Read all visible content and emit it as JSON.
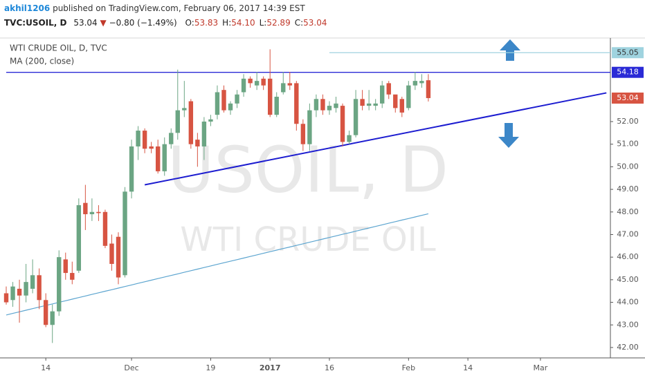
{
  "header": {
    "author": "akhil1206",
    "published": "published on TradingView.com, February 06, 2017 14:39 EST",
    "symbol": "TVC:USOIL, D",
    "last": "53.04",
    "change": "−0.80 (−1.49%)",
    "ohlc": [
      {
        "label": "O:",
        "value": "53.83"
      },
      {
        "label": "H:",
        "value": "54.10"
      },
      {
        "label": "L:",
        "value": "52.89"
      },
      {
        "label": "C:",
        "value": "53.04"
      }
    ]
  },
  "chart_data": {
    "type": "candlestick",
    "legend": [
      "WTI CRUDE OIL, D, TVC",
      "MA (200, close)"
    ],
    "watermark": [
      "USOIL, D",
      "WTI CRUDE OIL"
    ],
    "categories": [
      null,
      null,
      null,
      null,
      null,
      null,
      "14",
      null,
      null,
      null,
      null,
      null,
      null,
      null,
      null,
      null,
      null,
      null,
      null,
      "Dec",
      null,
      null,
      null,
      null,
      null,
      null,
      null,
      null,
      null,
      null,
      null,
      "19",
      null,
      null,
      null,
      null,
      null,
      null,
      null,
      null,
      "2017",
      null,
      null,
      null,
      null,
      null,
      null,
      null,
      null,
      "16",
      null,
      null,
      null,
      null,
      null,
      null,
      null,
      null,
      null,
      null,
      null,
      "Feb",
      null,
      null,
      null,
      null,
      null,
      null,
      null,
      null,
      "14",
      null,
      null,
      null,
      null,
      null,
      null,
      null,
      null,
      null,
      null,
      "Mar",
      null,
      null,
      null,
      null,
      null,
      null,
      null,
      null,
      null,
      null
    ],
    "open": [
      44.4,
      44.1,
      44.6,
      44.3,
      44.6,
      45.2,
      44.1,
      43.0,
      43.6,
      45.9,
      45.3,
      45.4,
      48.4,
      47.9,
      48.0,
      48.0,
      46.6,
      46.9,
      45.2,
      48.9,
      50.9,
      51.6,
      50.9,
      50.9,
      49.8,
      51.0,
      51.5,
      52.5,
      52.9,
      51.2,
      50.9,
      52.0,
      52.3,
      53.4,
      52.5,
      52.8,
      53.3,
      53.9,
      53.6,
      53.9,
      53.9,
      52.3,
      53.3,
      53.7,
      53.7,
      51.9,
      51.0,
      52.5,
      53.0,
      52.5,
      52.6,
      52.7,
      51.1,
      51.4,
      53.0,
      52.7,
      52.7,
      52.8,
      53.7,
      53.2,
      53.0,
      52.6,
      53.6,
      53.7,
      53.83,
      null,
      null,
      null,
      null,
      null,
      null,
      null,
      null,
      null,
      null,
      null,
      null,
      null,
      null,
      null,
      null,
      null,
      null,
      null,
      null,
      null,
      null,
      null,
      null,
      null,
      null,
      null
    ],
    "high": [
      44.7,
      44.9,
      45.0,
      45.7,
      45.9,
      45.5,
      44.4,
      43.9,
      46.3,
      46.2,
      45.8,
      48.6,
      49.2,
      48.6,
      48.3,
      48.1,
      47.0,
      47.1,
      49.1,
      51.2,
      51.8,
      51.7,
      51.1,
      51.2,
      51.3,
      51.7,
      54.3,
      53.8,
      53.0,
      51.5,
      52.2,
      52.3,
      53.6,
      53.6,
      52.9,
      53.4,
      54.1,
      54.0,
      54.2,
      54.0,
      55.2,
      53.3,
      54.2,
      54.2,
      53.8,
      52.1,
      52.8,
      53.2,
      53.2,
      52.9,
      53.1,
      52.8,
      51.6,
      53.4,
      53.4,
      53.4,
      53.0,
      53.8,
      53.8,
      53.1,
      53.1,
      53.8,
      54.2,
      54.1,
      54.1,
      null,
      null,
      null,
      null,
      null,
      null,
      null,
      null,
      null,
      null,
      null,
      null,
      null,
      null,
      null,
      null,
      null,
      null,
      null,
      null,
      null,
      null,
      null,
      null,
      null,
      null,
      null
    ],
    "low": [
      43.9,
      43.8,
      43.1,
      44.0,
      44.4,
      43.7,
      42.9,
      42.2,
      43.4,
      45.0,
      44.8,
      45.3,
      47.2,
      47.6,
      47.6,
      46.4,
      45.4,
      44.8,
      45.1,
      48.6,
      50.3,
      50.6,
      50.6,
      49.7,
      49.6,
      50.8,
      51.2,
      52.2,
      50.8,
      50.0,
      50.3,
      51.8,
      52.1,
      52.4,
      52.3,
      52.6,
      53.1,
      53.5,
      53.4,
      53.4,
      52.2,
      52.2,
      53.2,
      53.4,
      51.6,
      50.7,
      50.7,
      52.2,
      52.3,
      52.3,
      52.4,
      50.9,
      51.0,
      51.3,
      52.5,
      52.5,
      52.5,
      52.6,
      53.0,
      52.4,
      52.2,
      52.5,
      53.4,
      53.5,
      52.89,
      null,
      null,
      null,
      null,
      null,
      null,
      null,
      null,
      null,
      null,
      null,
      null,
      null,
      null,
      null,
      null,
      null,
      null,
      null,
      null,
      null,
      null,
      null,
      null,
      null,
      null,
      null
    ],
    "close": [
      44.0,
      44.7,
      44.3,
      44.9,
      45.2,
      44.1,
      43.0,
      43.6,
      46.0,
      45.3,
      45.0,
      48.3,
      47.9,
      48.0,
      47.95,
      46.5,
      45.7,
      45.1,
      48.9,
      50.9,
      51.6,
      50.8,
      50.8,
      49.8,
      51.0,
      51.5,
      52.5,
      52.6,
      51.0,
      50.9,
      52.0,
      52.1,
      53.3,
      52.5,
      52.8,
      53.2,
      53.9,
      53.7,
      53.8,
      53.6,
      52.3,
      53.1,
      53.7,
      53.6,
      51.9,
      51.0,
      52.5,
      53.0,
      52.5,
      52.7,
      52.8,
      51.1,
      51.4,
      53.0,
      52.7,
      52.8,
      52.8,
      53.6,
      53.2,
      52.6,
      52.4,
      53.6,
      53.8,
      53.8,
      53.04,
      null,
      null,
      null,
      null,
      null,
      null,
      null,
      null,
      null,
      null,
      null,
      null,
      null,
      null,
      null,
      null,
      null,
      null,
      null,
      null,
      null,
      null,
      null,
      null,
      null,
      null,
      null
    ],
    "ma": {
      "name": "MA (200, close)",
      "color": "#5ba4cf",
      "values": [
        43.44,
        43.51,
        43.58,
        43.65,
        43.72,
        43.79,
        43.86,
        43.93,
        44.0,
        44.07,
        44.14,
        44.21,
        44.28,
        44.35,
        44.42,
        44.49,
        44.56,
        44.63,
        44.7,
        44.77,
        44.84,
        44.91,
        44.98,
        45.05,
        45.12,
        45.19,
        45.26,
        45.33,
        45.4,
        45.47,
        45.54,
        45.61,
        45.68,
        45.75,
        45.82,
        45.89,
        45.96,
        46.03,
        46.1,
        46.17,
        46.24,
        46.31,
        46.38,
        46.45,
        46.52,
        46.59,
        46.66,
        46.73,
        46.8,
        46.87,
        46.94,
        47.01,
        47.08,
        47.15,
        47.22,
        47.29,
        47.36,
        47.43,
        47.5,
        47.57,
        47.64,
        47.71,
        47.78,
        47.85,
        47.92,
        null,
        null,
        null,
        null,
        null,
        null,
        null,
        null,
        null,
        null,
        null,
        null,
        null,
        null,
        null,
        null,
        null,
        null,
        null,
        null,
        null,
        null,
        null,
        null,
        null,
        null,
        null
      ]
    },
    "up_color": "#6ba583",
    "down_color": "#d75442",
    "hlines": [
      {
        "value": 55.05,
        "color": "#9fd3df",
        "x_start": 49
      },
      {
        "value": 54.18,
        "color": "#2a2ad6",
        "x_start": 0
      }
    ],
    "trendline": {
      "color": "#1c1cd0",
      "x": [
        21,
        91
      ],
      "y": [
        49.2,
        53.27
      ]
    },
    "ylim": [
      41.54,
      55.7
    ],
    "yticks": [
      {
        "value": 42,
        "label": "42.00"
      },
      {
        "value": 43,
        "label": "43.00"
      },
      {
        "value": 44,
        "label": "44.00"
      },
      {
        "value": 45,
        "label": "45.00"
      },
      {
        "value": 46,
        "label": "46.00"
      },
      {
        "value": 47,
        "label": "47.00"
      },
      {
        "value": 48,
        "label": "48.00"
      },
      {
        "value": 49,
        "label": "49.00"
      },
      {
        "value": 50,
        "label": "50.00"
      },
      {
        "value": 51,
        "label": "51.00"
      },
      {
        "value": 52,
        "label": "52.00"
      }
    ],
    "grid": false
  }
}
